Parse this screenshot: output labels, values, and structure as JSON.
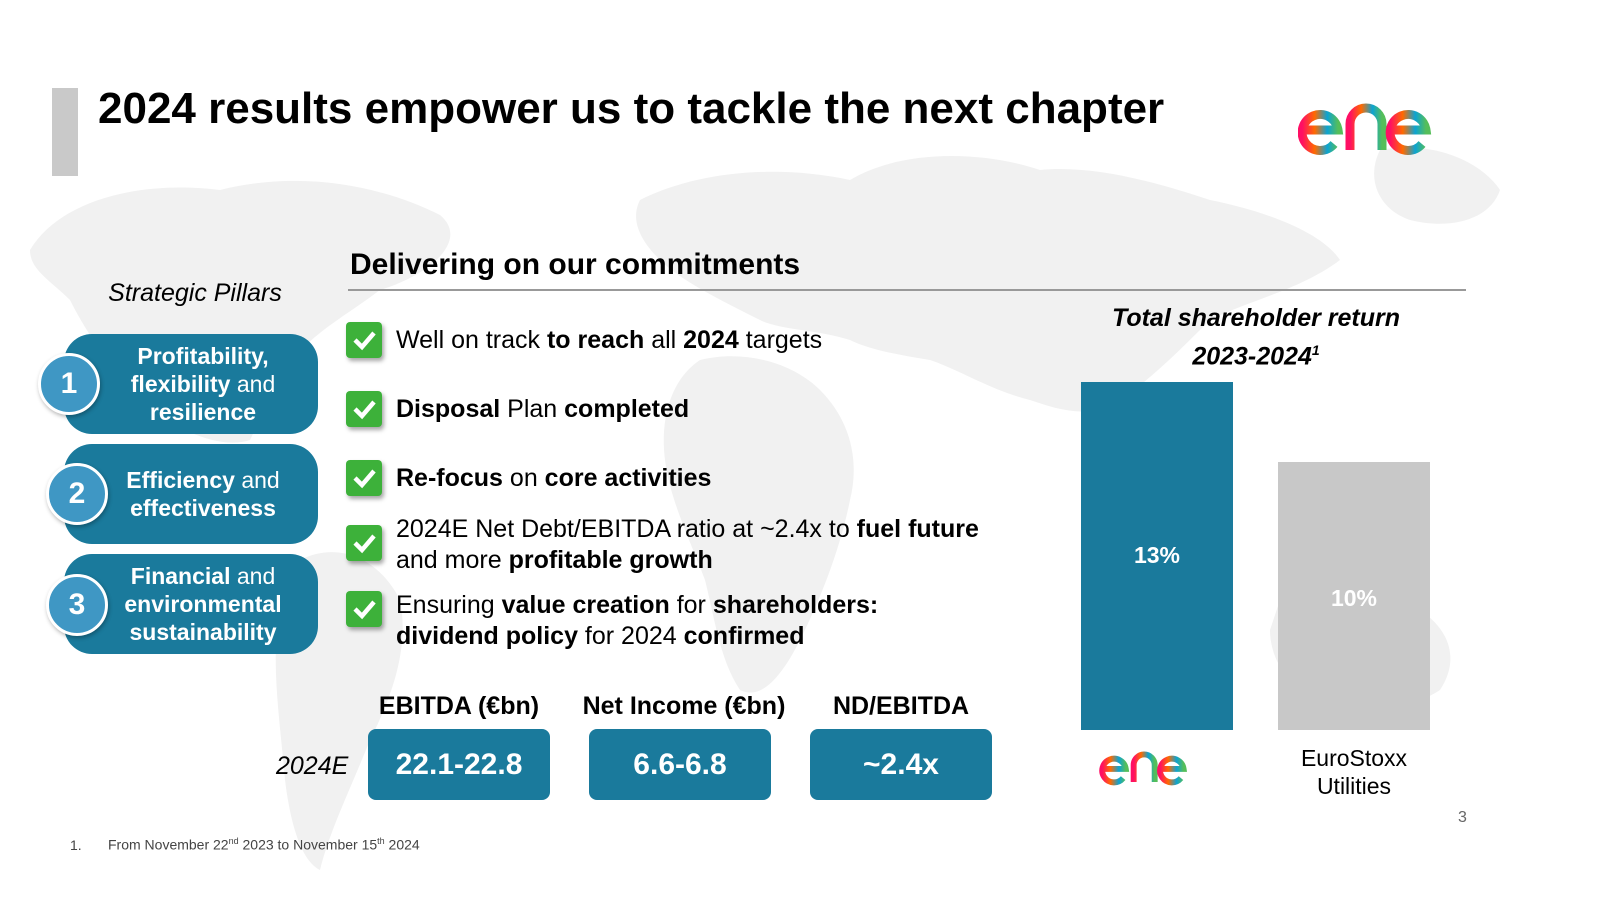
{
  "title": "2024 results empower us to tackle the next chapter",
  "logo": {
    "name": "enel-logo",
    "colors": [
      "#ff0f64",
      "#ff6a00",
      "#0ca3d2",
      "#55be5a"
    ]
  },
  "pillars": {
    "heading": "Strategic Pillars",
    "items": [
      {
        "number": "1",
        "bold1": "Profitability,",
        "bold2": "flexibility",
        "normal2": " and",
        "bold3": "resilience"
      },
      {
        "number": "2",
        "bold1": "Efficiency",
        "normal1": " and",
        "bold2": "effectiveness"
      },
      {
        "number": "3",
        "bold1": "Financial",
        "normal1": " and",
        "bold2": "environmental",
        "bold3": "sustainability"
      }
    ]
  },
  "commitments": {
    "heading": "Delivering on our commitments",
    "items": [
      {
        "t1": "Well on track ",
        "b1": "to reach",
        "t2": " all ",
        "b2": "2024",
        "t3": " targets"
      },
      {
        "b1": "Disposal",
        "t1": " Plan ",
        "b2": "completed"
      },
      {
        "b1": "Re-focus",
        "t1": " on ",
        "b2": "core activities"
      },
      {
        "t1": "2024E Net Debt/EBITDA ratio at ~2.4x to ",
        "b1": "fuel future",
        "t2": "and more ",
        "b2": "profitable growth"
      },
      {
        "t1": "Ensuring ",
        "b1": "value creation",
        "t2": " for ",
        "b2": "shareholders:",
        "b3": "dividend policy",
        "t3": " for 2024 ",
        "b4": "confirmed"
      }
    ]
  },
  "kpis": {
    "year_label": "2024E",
    "items": [
      {
        "label": "EBITDA (€bn)",
        "value": "22.1-22.8"
      },
      {
        "label": "Net Income (€bn)",
        "value": "6.6-6.8"
      },
      {
        "label": "ND/EBITDA",
        "value": "~2.4x"
      }
    ]
  },
  "tsr": {
    "title_line1": "Total shareholder return",
    "title_line2": "2023-2024",
    "title_sup": "1",
    "bars": [
      {
        "label": "13%",
        "value": 13,
        "color": "#1a7a9c"
      },
      {
        "label": "10%",
        "value": 10,
        "color": "#c8c8c8"
      }
    ],
    "euro_label_line1": "EuroStoxx",
    "euro_label_line2": "Utilities"
  },
  "page_number": "3",
  "footnote": {
    "number": "1.",
    "t1": "From November 22",
    "s1": "nd",
    "t2": " 2023 to November 15",
    "s2": "th",
    "t3": " 2024"
  }
}
